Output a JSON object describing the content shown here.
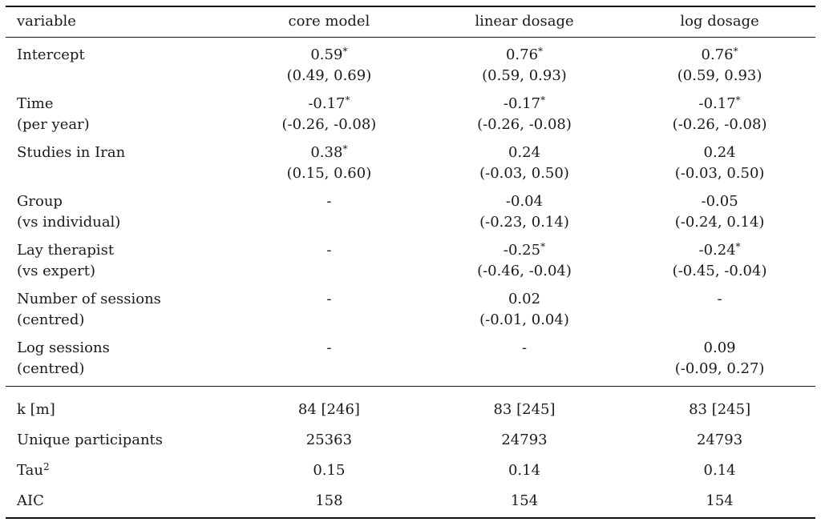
{
  "header": [
    "variable",
    "core model",
    "linear dosage",
    "log dosage"
  ],
  "coefficients": [
    {
      "label": [
        "Intercept",
        ""
      ],
      "cells": [
        {
          "est": "0.59",
          "star": "*",
          "ci": "(0.49, 0.69)"
        },
        {
          "est": "0.76",
          "star": "*",
          "ci": "(0.59, 0.93)"
        },
        {
          "est": "0.76",
          "star": "*",
          "ci": "(0.59, 0.93)"
        }
      ]
    },
    {
      "label": [
        "Time",
        "(per year)"
      ],
      "cells": [
        {
          "est": "-0.17",
          "star": "*",
          "ci": "(-0.26, -0.08)"
        },
        {
          "est": "-0.17",
          "star": "*",
          "ci": "(-0.26, -0.08)"
        },
        {
          "est": "-0.17",
          "star": "*",
          "ci": "(-0.26, -0.08)"
        }
      ]
    },
    {
      "label": [
        "Studies in Iran",
        ""
      ],
      "cells": [
        {
          "est": "0.38",
          "star": "*",
          "ci": "(0.15, 0.60)"
        },
        {
          "est": "0.24",
          "star": "",
          "ci": "(-0.03, 0.50)"
        },
        {
          "est": "0.24",
          "star": "",
          "ci": "(-0.03, 0.50)"
        }
      ]
    },
    {
      "label": [
        "Group",
        "(vs individual)"
      ],
      "cells": [
        {
          "est": "-",
          "star": "",
          "ci": ""
        },
        {
          "est": "-0.04",
          "star": "",
          "ci": "(-0.23, 0.14)"
        },
        {
          "est": "-0.05",
          "star": "",
          "ci": "(-0.24, 0.14)"
        }
      ]
    },
    {
      "label": [
        "Lay therapist",
        "(vs expert)"
      ],
      "cells": [
        {
          "est": "-",
          "star": "",
          "ci": ""
        },
        {
          "est": "-0.25",
          "star": "*",
          "ci": "(-0.46, -0.04)"
        },
        {
          "est": "-0.24",
          "star": "*",
          "ci": "(-0.45, -0.04)"
        }
      ]
    },
    {
      "label": [
        "Number of sessions",
        "(centred)"
      ],
      "cells": [
        {
          "est": "-",
          "star": "",
          "ci": ""
        },
        {
          "est": "0.02",
          "star": "",
          "ci": "(-0.01, 0.04)"
        },
        {
          "est": "-",
          "star": "",
          "ci": ""
        }
      ]
    },
    {
      "label": [
        "Log sessions",
        "(centred)"
      ],
      "cells": [
        {
          "est": "-",
          "star": "",
          "ci": ""
        },
        {
          "est": "-",
          "star": "",
          "ci": ""
        },
        {
          "est": "0.09",
          "star": "",
          "ci": "(-0.09, 0.27)"
        }
      ]
    }
  ],
  "stats": [
    {
      "label": "k [m]",
      "sup": "",
      "values": [
        "84 [246]",
        "83 [245]",
        "83 [245]"
      ]
    },
    {
      "label": "Unique participants",
      "sup": "",
      "values": [
        "25363",
        "24793",
        "24793"
      ]
    },
    {
      "label": "Tau",
      "sup": "2",
      "values": [
        "0.15",
        "0.14",
        "0.14"
      ]
    },
    {
      "label": "AIC",
      "sup": "",
      "values": [
        "158",
        "154",
        "154"
      ]
    }
  ]
}
